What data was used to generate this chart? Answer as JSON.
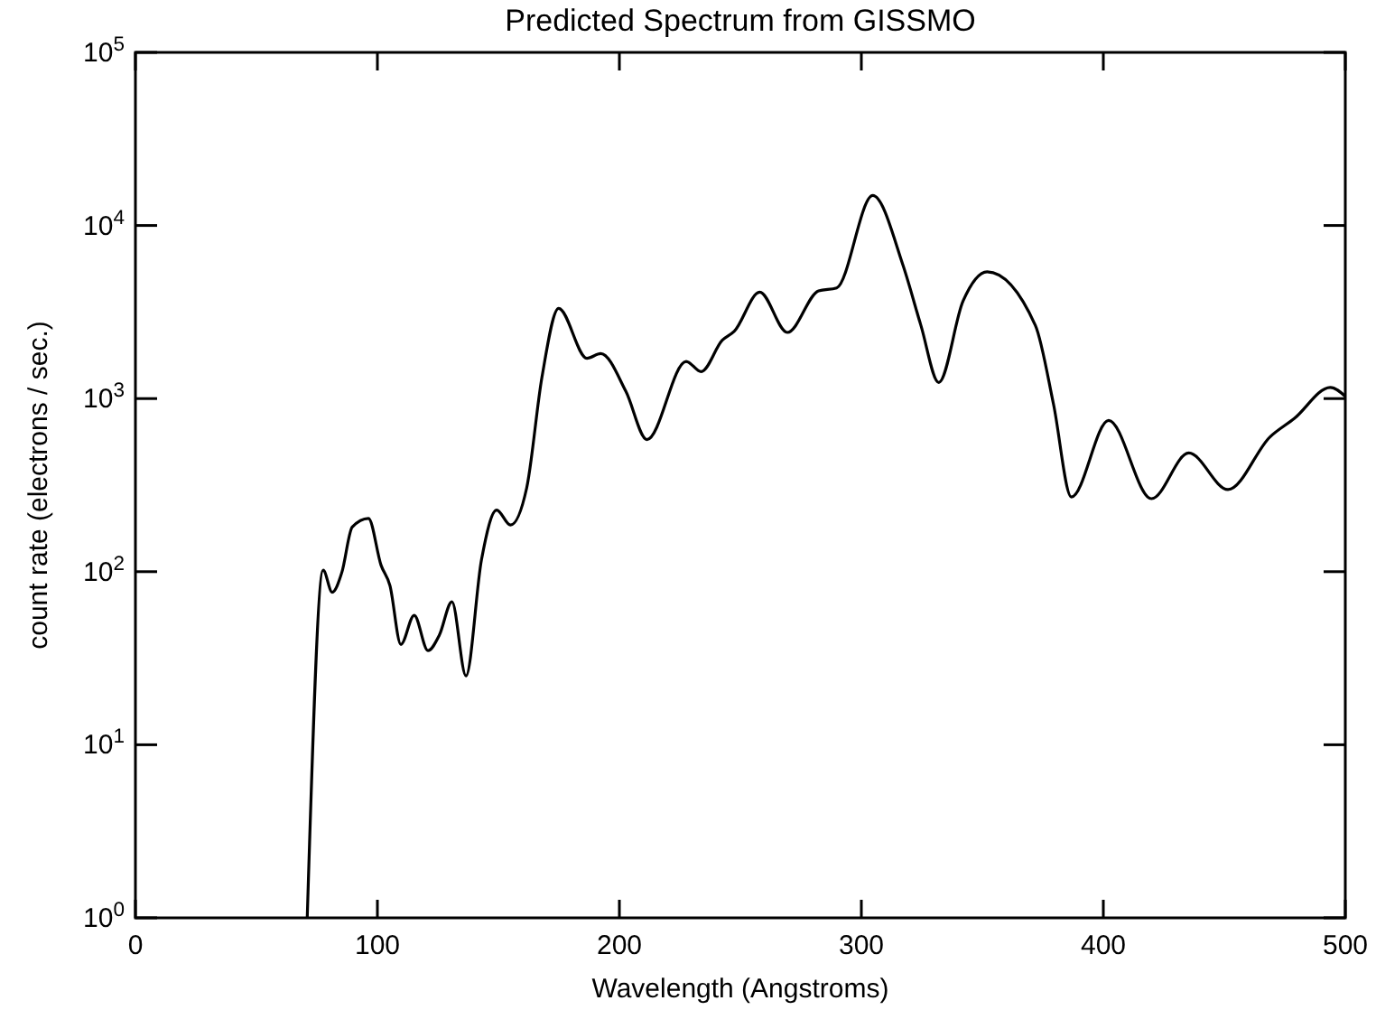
{
  "chart_data": {
    "type": "line",
    "title": "Predicted Spectrum from GISSMO",
    "xlabel": "Wavelength (Angstroms)",
    "ylabel": "count rate (electrons / sec.)",
    "log": "y",
    "grid": false,
    "marker": "none",
    "line_style": "solid",
    "xlim": [
      0,
      500
    ],
    "xticks": [
      0,
      100,
      200,
      300,
      400,
      500
    ],
    "ylim": [
      1,
      100000
    ],
    "yticks": [
      {
        "value": 1,
        "label": "10$^{0}$"
      },
      {
        "value": 10,
        "label": "10$^{1}$"
      },
      {
        "value": 100,
        "label": "10$^{2}$"
      },
      {
        "value": 1000,
        "label": "10$^{3}$"
      },
      {
        "value": 10000,
        "label": "10$^{4}$"
      },
      {
        "value": 100000,
        "label": "10$^{5}$"
      }
    ],
    "series": [
      {
        "color": "#000000",
        "x": [
          71,
          77.6,
          81.3,
          85.3,
          89.6,
          96.3,
          101.5,
          105.2,
          109.7,
          115.2,
          120.9,
          125.6,
          130.8,
          136.6,
          143,
          149.3,
          155,
          161.7,
          168,
          174.9,
          186.6,
          192.3,
          202.7,
          211.4,
          227.6,
          233.8,
          242.5,
          247.5,
          258,
          269.4,
          282.3,
          289.8,
          304.7,
          317.2,
          324.6,
          332,
          342,
          352,
          371.9,
          379.4,
          386.8,
          402.2,
          419.9,
          435.3,
          451.5,
          468.9,
          478.9,
          493.8,
          500
        ],
        "values": [
          1,
          102,
          76,
          99,
          181,
          203,
          109,
          83,
          38,
          56,
          35,
          43,
          67,
          25,
          117,
          227,
          186,
          305,
          1330,
          3320,
          1710,
          1820,
          1100,
          580,
          1640,
          1430,
          2170,
          2450,
          4120,
          2410,
          4190,
          4360,
          14900,
          5900,
          2650,
          1240,
          3650,
          5400,
          2650,
          930,
          270,
          748,
          264,
          485,
          298,
          601,
          767,
          1160,
          1030
        ]
      }
    ]
  }
}
